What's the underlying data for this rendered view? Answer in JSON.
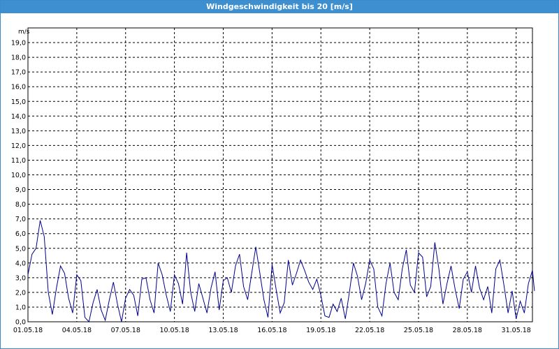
{
  "window": {
    "title": "Windgeschwindigkeit bis 20 [m/s]"
  },
  "chart_data": {
    "type": "line",
    "title": "Windgeschwindigkeit bis 20 [m/s]",
    "ylabel": "m/s",
    "xlabel": "",
    "ylim": [
      0,
      20
    ],
    "xlim": [
      "2018-05-01",
      "2018-06-01"
    ],
    "y_ticks": [
      "0,0",
      "1,0",
      "2,0",
      "3,0",
      "4,0",
      "5,0",
      "6,0",
      "7,0",
      "8,0",
      "9,0",
      "10,0",
      "11,0",
      "12,0",
      "13,0",
      "14,0",
      "15,0",
      "16,0",
      "17,0",
      "18,0",
      "19,0"
    ],
    "x_ticks": [
      {
        "date": "2018-05-01",
        "label": "01.05.18"
      },
      {
        "date": "2018-05-04",
        "label": "04.05.18"
      },
      {
        "date": "2018-05-07",
        "label": "07.05.18"
      },
      {
        "date": "2018-05-10",
        "label": "10.05.18"
      },
      {
        "date": "2018-05-13",
        "label": "13.05.18"
      },
      {
        "date": "2018-05-16",
        "label": "16.05.18"
      },
      {
        "date": "2018-05-19",
        "label": "19.05.18"
      },
      {
        "date": "2018-05-22",
        "label": "22.05.18"
      },
      {
        "date": "2018-05-25",
        "label": "25.05.18"
      },
      {
        "date": "2018-05-28",
        "label": "28.05.18"
      },
      {
        "date": "2018-05-31",
        "label": "31.05.18"
      }
    ],
    "grid": true,
    "line_color": "#00008b",
    "series": [
      {
        "points": [
          [
            "2018-05-01T00:00",
            3.2
          ],
          [
            "2018-05-01T06:00",
            4.6
          ],
          [
            "2018-05-01T12:00",
            5.0
          ],
          [
            "2018-05-01T18:00",
            6.9
          ],
          [
            "2018-05-02T00:00",
            5.8
          ],
          [
            "2018-05-02T06:00",
            2.0
          ],
          [
            "2018-05-02T12:00",
            0.5
          ],
          [
            "2018-05-02T18:00",
            2.3
          ],
          [
            "2018-05-03T00:00",
            3.8
          ],
          [
            "2018-05-03T06:00",
            3.3
          ],
          [
            "2018-05-03T12:00",
            1.6
          ],
          [
            "2018-05-03T18:00",
            0.6
          ],
          [
            "2018-05-04T00:00",
            3.2
          ],
          [
            "2018-05-04T06:00",
            2.8
          ],
          [
            "2018-05-04T12:00",
            0.3
          ],
          [
            "2018-05-04T18:00",
            0.0
          ],
          [
            "2018-05-05T00:00",
            1.3
          ],
          [
            "2018-05-05T06:00",
            2.2
          ],
          [
            "2018-05-05T12:00",
            0.8
          ],
          [
            "2018-05-05T18:00",
            0.1
          ],
          [
            "2018-05-06T00:00",
            1.5
          ],
          [
            "2018-05-06T06:00",
            2.7
          ],
          [
            "2018-05-06T12:00",
            1.2
          ],
          [
            "2018-05-06T18:00",
            0.0
          ],
          [
            "2018-05-07T00:00",
            1.6
          ],
          [
            "2018-05-07T06:00",
            2.2
          ],
          [
            "2018-05-07T12:00",
            1.8
          ],
          [
            "2018-05-07T18:00",
            0.4
          ],
          [
            "2018-05-08T00:00",
            2.9
          ],
          [
            "2018-05-08T06:00",
            3.0
          ],
          [
            "2018-05-08T12:00",
            1.5
          ],
          [
            "2018-05-08T18:00",
            0.6
          ],
          [
            "2018-05-09T00:00",
            4.0
          ],
          [
            "2018-05-09T06:00",
            3.2
          ],
          [
            "2018-05-09T12:00",
            1.8
          ],
          [
            "2018-05-09T18:00",
            0.7
          ],
          [
            "2018-05-10T00:00",
            3.2
          ],
          [
            "2018-05-10T06:00",
            2.6
          ],
          [
            "2018-05-10T12:00",
            1.2
          ],
          [
            "2018-05-10T18:00",
            4.7
          ],
          [
            "2018-05-11T00:00",
            2.0
          ],
          [
            "2018-05-11T06:00",
            0.7
          ],
          [
            "2018-05-11T12:00",
            2.6
          ],
          [
            "2018-05-11T18:00",
            1.6
          ],
          [
            "2018-05-12T00:00",
            0.6
          ],
          [
            "2018-05-12T06:00",
            2.3
          ],
          [
            "2018-05-12T12:00",
            3.4
          ],
          [
            "2018-05-12T18:00",
            0.8
          ],
          [
            "2018-05-13T00:00",
            2.8
          ],
          [
            "2018-05-13T06:00",
            3.0
          ],
          [
            "2018-05-13T12:00",
            2.0
          ],
          [
            "2018-05-13T18:00",
            3.8
          ],
          [
            "2018-05-14T00:00",
            4.6
          ],
          [
            "2018-05-14T06:00",
            2.4
          ],
          [
            "2018-05-14T12:00",
            1.5
          ],
          [
            "2018-05-14T18:00",
            3.3
          ],
          [
            "2018-05-15T00:00",
            5.1
          ],
          [
            "2018-05-15T06:00",
            3.3
          ],
          [
            "2018-05-15T12:00",
            1.5
          ],
          [
            "2018-05-15T18:00",
            0.3
          ],
          [
            "2018-05-16T00:00",
            3.9
          ],
          [
            "2018-05-16T06:00",
            2.2
          ],
          [
            "2018-05-16T12:00",
            0.6
          ],
          [
            "2018-05-16T18:00",
            1.3
          ],
          [
            "2018-05-17T00:00",
            4.2
          ],
          [
            "2018-05-17T06:00",
            2.5
          ],
          [
            "2018-05-17T12:00",
            3.3
          ],
          [
            "2018-05-17T18:00",
            4.2
          ],
          [
            "2018-05-18T00:00",
            3.5
          ],
          [
            "2018-05-18T06:00",
            2.7
          ],
          [
            "2018-05-18T12:00",
            2.2
          ],
          [
            "2018-05-18T18:00",
            2.9
          ],
          [
            "2018-05-19T00:00",
            1.8
          ],
          [
            "2018-05-19T06:00",
            0.4
          ],
          [
            "2018-05-19T12:00",
            0.3
          ],
          [
            "2018-05-19T18:00",
            1.2
          ],
          [
            "2018-05-20T00:00",
            0.7
          ],
          [
            "2018-05-20T06:00",
            1.6
          ],
          [
            "2018-05-20T12:00",
            0.2
          ],
          [
            "2018-05-20T18:00",
            2.0
          ],
          [
            "2018-05-21T00:00",
            4.0
          ],
          [
            "2018-05-21T06:00",
            3.1
          ],
          [
            "2018-05-21T12:00",
            1.5
          ],
          [
            "2018-05-21T18:00",
            2.6
          ],
          [
            "2018-05-22T00:00",
            4.2
          ],
          [
            "2018-05-22T06:00",
            3.6
          ],
          [
            "2018-05-22T12:00",
            1.0
          ],
          [
            "2018-05-22T18:00",
            0.4
          ],
          [
            "2018-05-23T00:00",
            2.6
          ],
          [
            "2018-05-23T06:00",
            4.0
          ],
          [
            "2018-05-23T12:00",
            2.0
          ],
          [
            "2018-05-23T18:00",
            1.5
          ],
          [
            "2018-05-24T00:00",
            3.6
          ],
          [
            "2018-05-24T06:00",
            4.9
          ],
          [
            "2018-05-24T12:00",
            2.5
          ],
          [
            "2018-05-24T18:00",
            2.0
          ],
          [
            "2018-05-25T00:00",
            4.7
          ],
          [
            "2018-05-25T06:00",
            4.4
          ],
          [
            "2018-05-25T12:00",
            1.7
          ],
          [
            "2018-05-25T18:00",
            2.4
          ],
          [
            "2018-05-26T00:00",
            5.4
          ],
          [
            "2018-05-26T06:00",
            3.6
          ],
          [
            "2018-05-26T12:00",
            1.2
          ],
          [
            "2018-05-26T18:00",
            2.6
          ],
          [
            "2018-05-27T00:00",
            3.8
          ],
          [
            "2018-05-27T06:00",
            2.2
          ],
          [
            "2018-05-27T12:00",
            0.9
          ],
          [
            "2018-05-27T18:00",
            2.9
          ],
          [
            "2018-05-28T00:00",
            3.4
          ],
          [
            "2018-05-28T06:00",
            2.0
          ],
          [
            "2018-05-28T12:00",
            3.8
          ],
          [
            "2018-05-28T18:00",
            2.3
          ],
          [
            "2018-05-29T00:00",
            1.5
          ],
          [
            "2018-05-29T06:00",
            2.4
          ],
          [
            "2018-05-29T12:00",
            0.6
          ],
          [
            "2018-05-29T18:00",
            3.6
          ],
          [
            "2018-05-30T00:00",
            4.2
          ],
          [
            "2018-05-30T06:00",
            2.5
          ],
          [
            "2018-05-30T12:00",
            0.6
          ],
          [
            "2018-05-30T18:00",
            2.1
          ],
          [
            "2018-05-31T00:00",
            0.2
          ],
          [
            "2018-05-31T06:00",
            1.4
          ],
          [
            "2018-05-31T12:00",
            0.6
          ],
          [
            "2018-05-31T18:00",
            2.6
          ],
          [
            "2018-06-01T00:00",
            3.5
          ],
          [
            "2018-06-01T03:00",
            2.1
          ]
        ]
      }
    ]
  }
}
